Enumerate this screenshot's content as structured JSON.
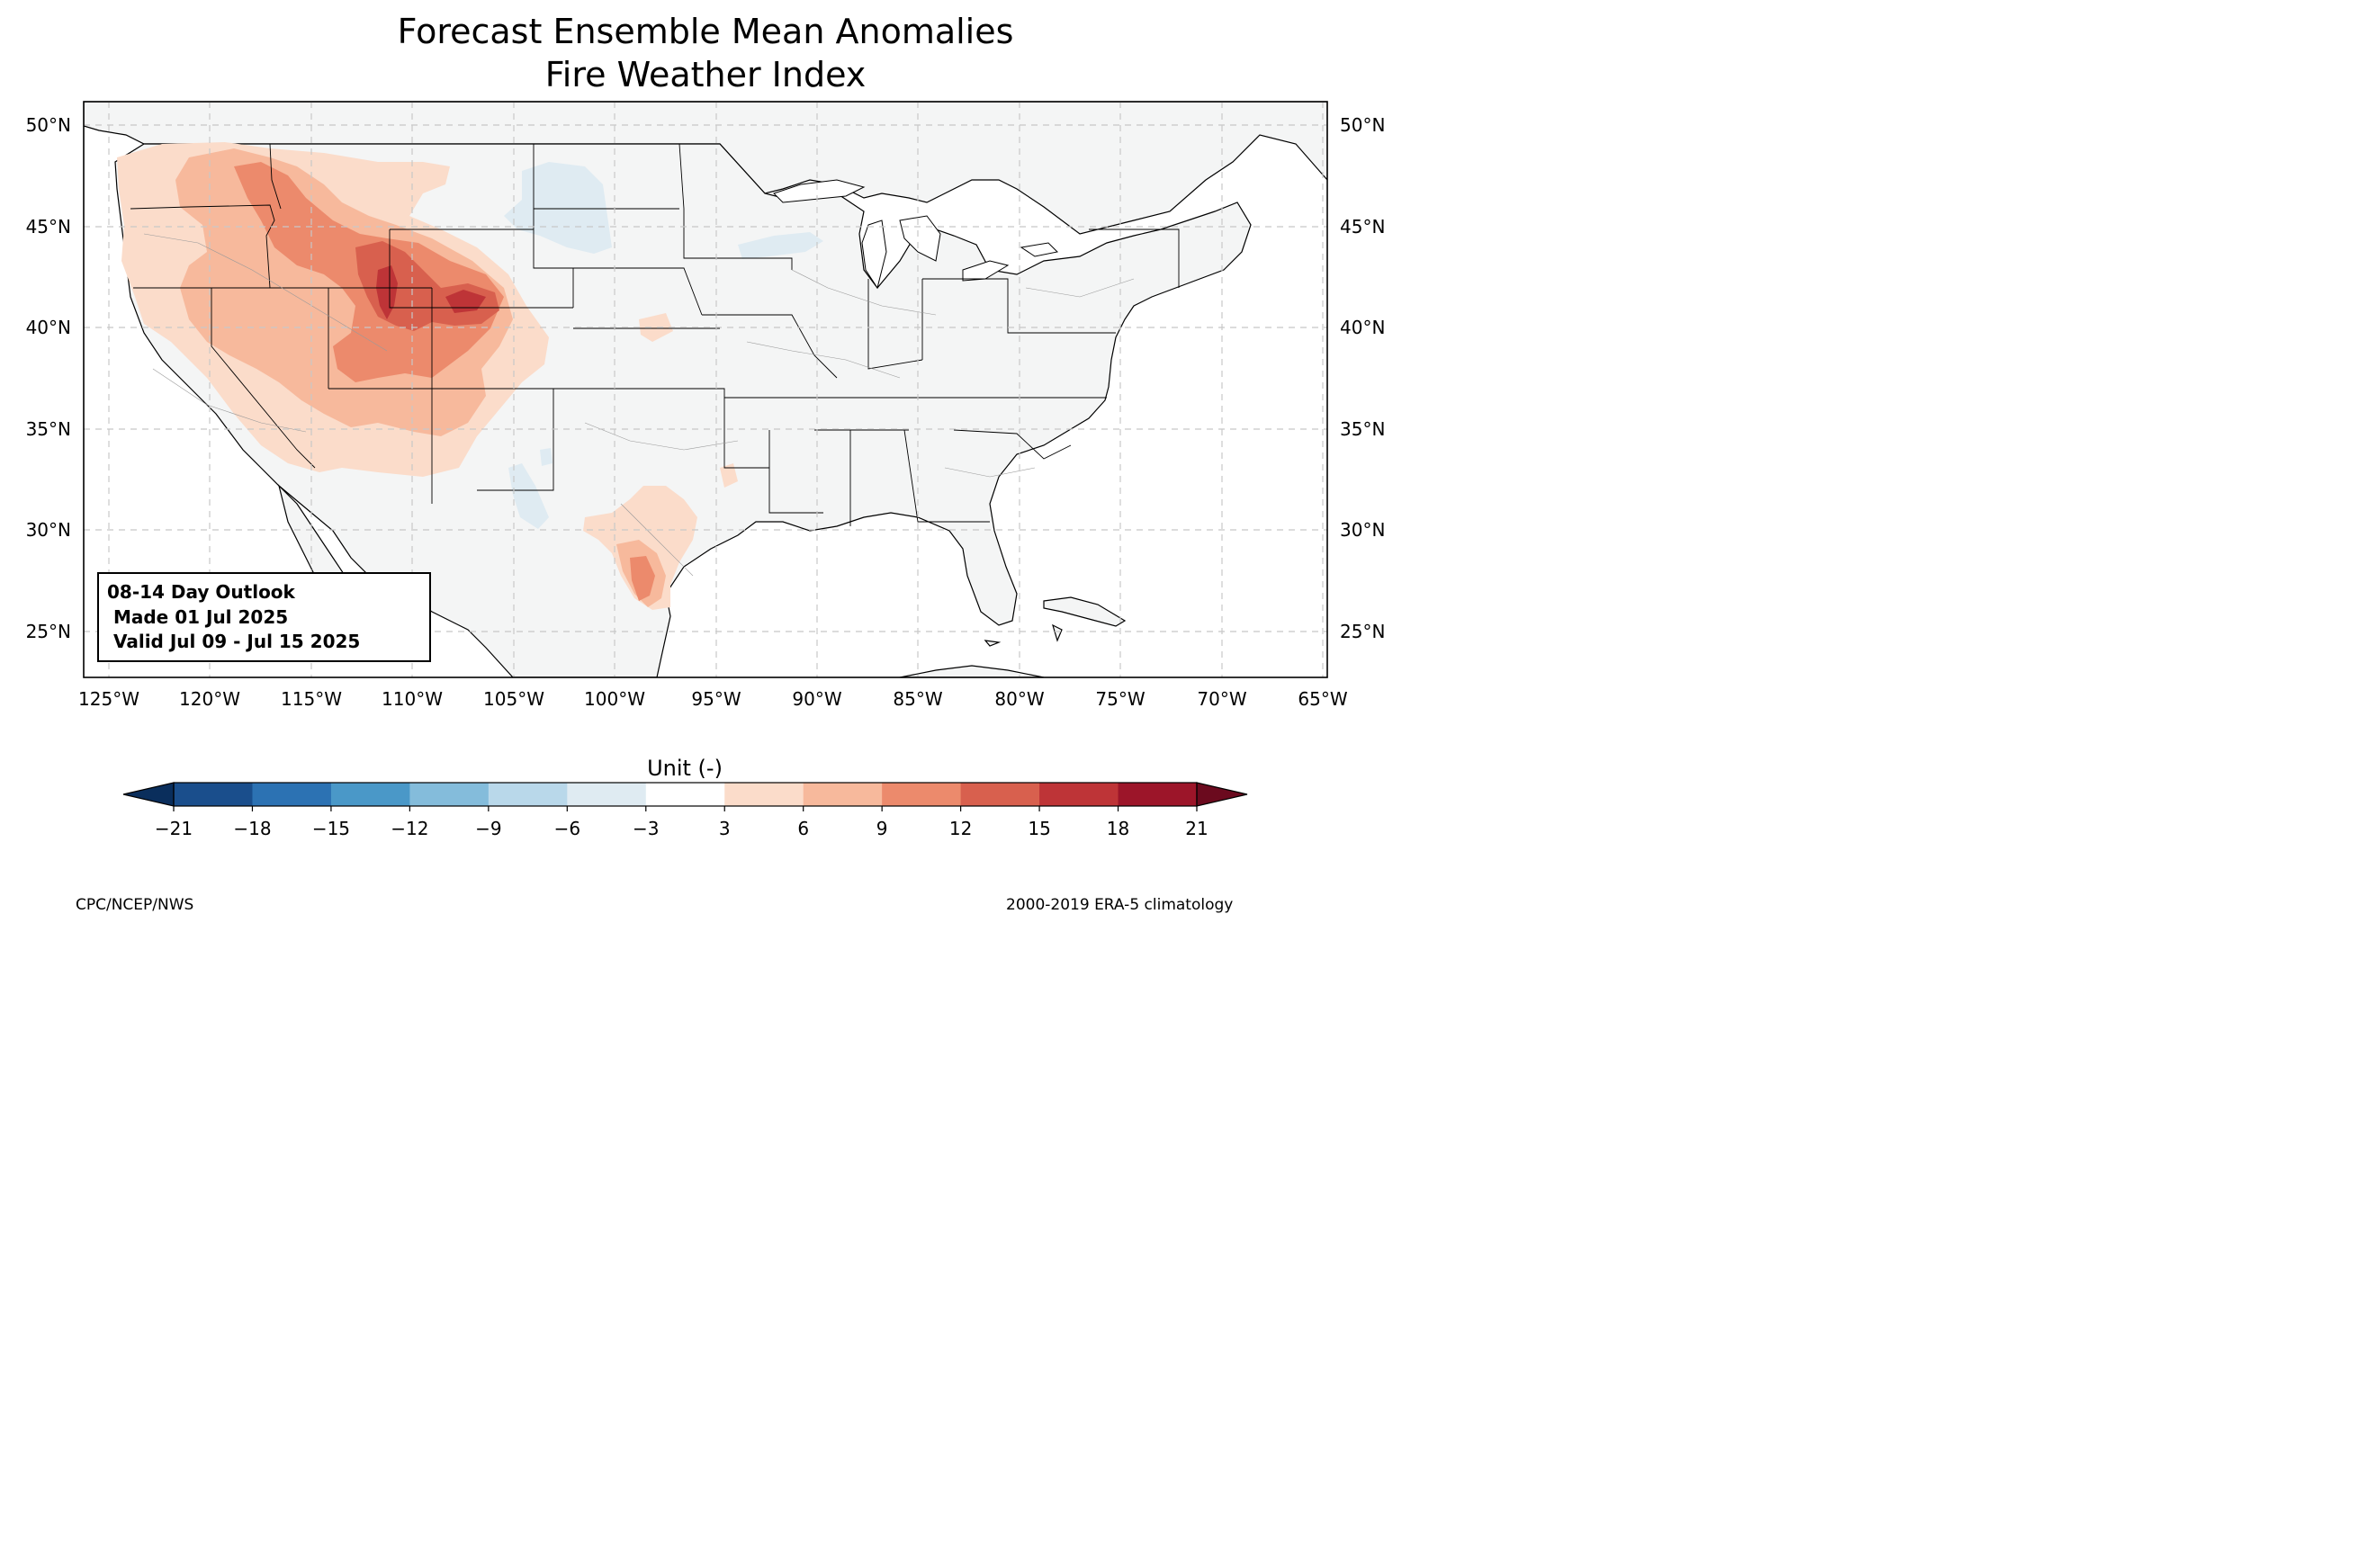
{
  "title": {
    "line1": "Forecast Ensemble Mean Anomalies",
    "line2": "Fire Weather Index"
  },
  "map": {
    "lon_ticks": [
      "125°W",
      "120°W",
      "115°W",
      "110°W",
      "105°W",
      "100°W",
      "95°W",
      "90°W",
      "85°W",
      "80°W",
      "75°W",
      "70°W",
      "65°W"
    ],
    "lat_ticks": [
      "50°N",
      "45°N",
      "40°N",
      "35°N",
      "30°N",
      "25°N"
    ],
    "lon_extent": [
      -126.3,
      -64.8
    ],
    "lat_extent": [
      22.8,
      51.2
    ],
    "gridlines": true,
    "anomaly_areas": [
      {
        "region": "Pacific Northwest / Northern Rockies",
        "level": "3 to 9"
      },
      {
        "region": "Wyoming / Colorado",
        "level": "12 to 18"
      },
      {
        "region": "Great Basin / Southwest",
        "level": "3 to 12"
      },
      {
        "region": "South Texas",
        "level": "3 to 15"
      },
      {
        "region": "Minnesota / Lake Superior",
        "level": "-6 to -3"
      }
    ]
  },
  "outlook_box": {
    "line1": "08-14 Day Outlook",
    "line2": " Made 01 Jul 2025",
    "line3": " Valid Jul 09 - Jul 15 2025"
  },
  "colorbar": {
    "label": "Unit (-)",
    "ticks": [
      "−21",
      "−18",
      "−15",
      "−12",
      "−9",
      "−6",
      "−3",
      "3",
      "6",
      "9",
      "12",
      "15",
      "18",
      "21"
    ],
    "colors": [
      "#1a4e8c",
      "#2c72b3",
      "#4a98c8",
      "#84bcdb",
      "#b9d8ea",
      "#dfebf2",
      "#ffffff",
      "#fbdcca",
      "#f7b99c",
      "#ec8a6c",
      "#d8604e",
      "#be3437",
      "#9c1529"
    ],
    "extend_low_color": "#0a2e5c",
    "extend_high_color": "#6b0a1e"
  },
  "footer": {
    "left": "CPC/NCEP/NWS",
    "right": "2000-2019 ERA-5 climatology"
  }
}
